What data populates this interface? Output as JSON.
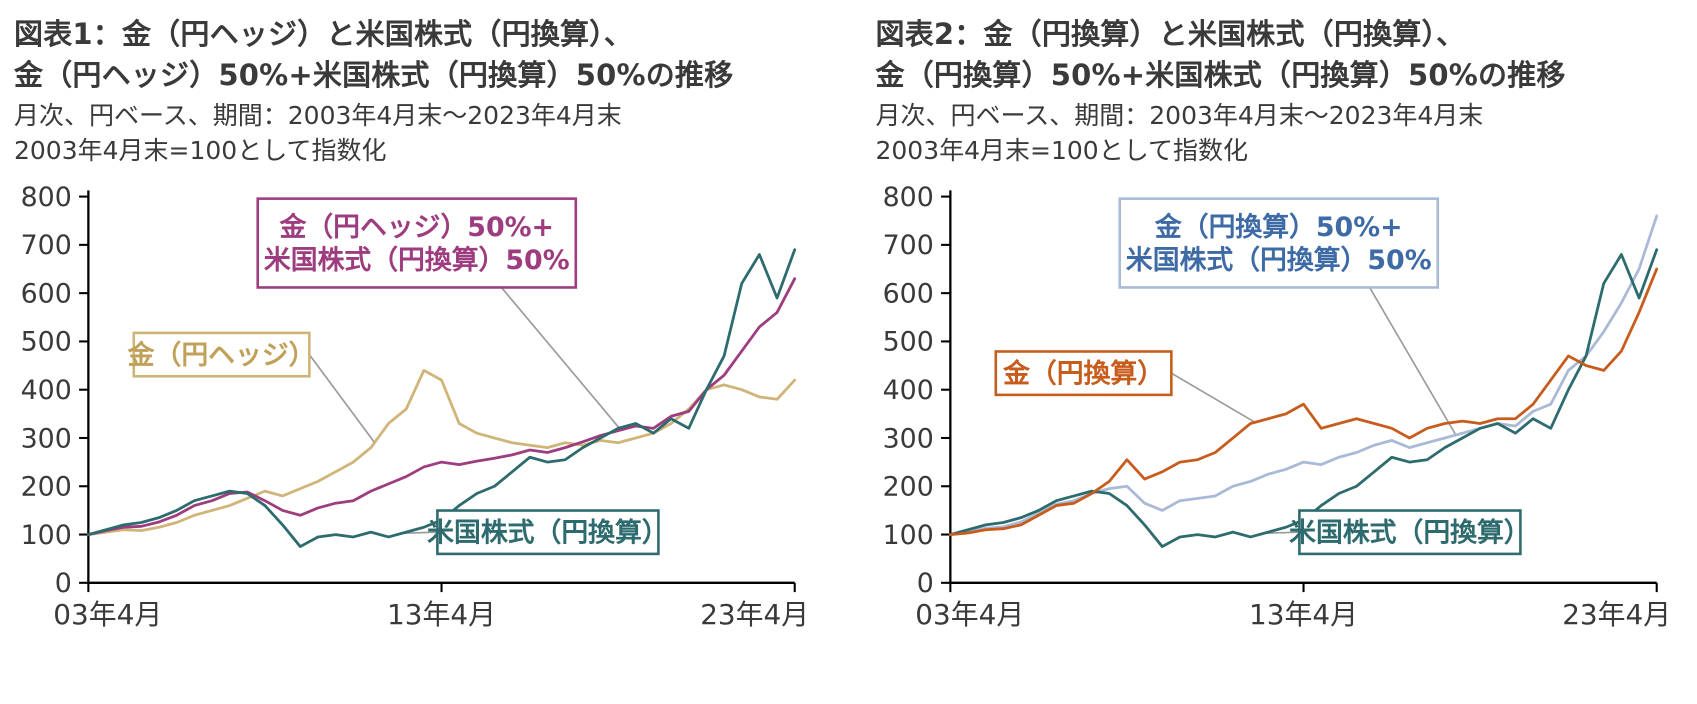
{
  "chart_data": [
    {
      "type": "line",
      "title_lines": [
        "図表1：金（円ヘッジ）と米国株式（円換算）、",
        "金（円ヘッジ）50%+米国株式（円換算）50%の推移"
      ],
      "subtitle_lines": [
        "月次、円ベース、期間：2003年4月末～2023年4月末",
        "2003年4月末=100として指数化"
      ],
      "x_range": [
        0,
        20
      ],
      "x_step": 0.5,
      "x_unit": "years since 2003-04 (monthly, indexed 2003-04 = 100)",
      "x_ticks": [
        0,
        10,
        20
      ],
      "x_tick_labels": [
        "03年4月",
        "13年4月",
        "23年4月"
      ],
      "ylim": [
        0,
        800
      ],
      "y_ticks": [
        0,
        100,
        200,
        300,
        400,
        500,
        600,
        700,
        800
      ],
      "grid": false,
      "series": [
        {
          "key": "gold-hedged",
          "name": "金（円ヘッジ）",
          "color": "#d0b479",
          "values": [
            100,
            105,
            110,
            108,
            115,
            125,
            140,
            150,
            160,
            175,
            190,
            180,
            195,
            210,
            230,
            250,
            280,
            330,
            360,
            440,
            420,
            330,
            310,
            300,
            290,
            285,
            280,
            290,
            285,
            295,
            290,
            300,
            310,
            330,
            360,
            400,
            410,
            400,
            385,
            380,
            420
          ]
        },
        {
          "key": "combo-50-50",
          "name": "金（円ヘッジ）50%+米国株式（円換算）50%",
          "color": "#9d3d7f",
          "values": [
            100,
            108,
            115,
            117,
            126,
            140,
            160,
            170,
            185,
            188,
            170,
            150,
            140,
            155,
            165,
            170,
            190,
            205,
            220,
            240,
            250,
            245,
            252,
            258,
            265,
            275,
            270,
            280,
            292,
            305,
            315,
            325,
            320,
            345,
            355,
            400,
            430,
            480,
            530,
            560,
            630
          ]
        },
        {
          "key": "us-equity",
          "name": "米国株式（円換算）",
          "color": "#2d6b6e",
          "values": [
            100,
            110,
            120,
            125,
            135,
            150,
            170,
            180,
            190,
            185,
            160,
            120,
            75,
            95,
            100,
            95,
            105,
            95,
            105,
            115,
            130,
            160,
            185,
            200,
            230,
            260,
            250,
            255,
            280,
            300,
            320,
            330,
            310,
            340,
            320,
            400,
            470,
            620,
            680,
            590,
            690
          ]
        }
      ],
      "legend": {
        "combo": {
          "lines": [
            "金（円ヘッジ）50%+",
            "米国株式（円換算）50%"
          ],
          "text_color": "#9d3d7f",
          "border_color": "#9d3d7f"
        },
        "gold": {
          "lines": [
            "金（円ヘッジ）"
          ],
          "text_color": "#c1a05a",
          "border_color": "#cfb478"
        },
        "equity": {
          "lines": [
            "米国株式（円換算）"
          ],
          "text_color": "#2d6b6e",
          "border_color": "#2d6b6e"
        }
      }
    },
    {
      "type": "line",
      "title_lines": [
        "図表2：金（円換算）と米国株式（円換算）、",
        "金（円換算）50%+米国株式（円換算）50%の推移"
      ],
      "subtitle_lines": [
        "月次、円ベース、期間：2003年4月末～2023年4月末",
        "2003年4月末=100として指数化"
      ],
      "x_range": [
        0,
        20
      ],
      "x_step": 0.5,
      "x_unit": "years since 2003-04 (monthly, indexed 2003-04 = 100)",
      "x_ticks": [
        0,
        10,
        20
      ],
      "x_tick_labels": [
        "03年4月",
        "13年4月",
        "23年4月"
      ],
      "ylim": [
        0,
        800
      ],
      "y_ticks": [
        0,
        100,
        200,
        300,
        400,
        500,
        600,
        700,
        800
      ],
      "grid": false,
      "series": [
        {
          "key": "combo-50-50",
          "name": "金（円換算）50%+米国株式（円換算）50%",
          "color": "#a9bad6",
          "values": [
            100,
            106,
            113,
            116,
            126,
            144,
            163,
            170,
            185,
            195,
            200,
            165,
            150,
            170,
            175,
            180,
            200,
            210,
            225,
            235,
            250,
            245,
            260,
            270,
            285,
            295,
            280,
            290,
            300,
            310,
            320,
            330,
            325,
            355,
            370,
            440,
            470,
            520,
            580,
            650,
            760
          ]
        },
        {
          "key": "us-equity",
          "name": "米国株式（円換算）",
          "color": "#2d6b6e",
          "values": [
            100,
            110,
            120,
            125,
            135,
            150,
            170,
            180,
            190,
            185,
            160,
            120,
            75,
            95,
            100,
            95,
            105,
            95,
            105,
            115,
            130,
            160,
            185,
            200,
            230,
            260,
            250,
            255,
            280,
            300,
            320,
            330,
            310,
            340,
            320,
            400,
            470,
            620,
            680,
            590,
            690
          ]
        },
        {
          "key": "gold-yen",
          "name": "金（円換算）",
          "color": "#c75c1d",
          "values": [
            100,
            103,
            110,
            112,
            120,
            140,
            160,
            165,
            185,
            210,
            255,
            215,
            230,
            250,
            255,
            270,
            300,
            330,
            340,
            350,
            370,
            320,
            330,
            340,
            330,
            320,
            300,
            320,
            330,
            335,
            330,
            340,
            340,
            370,
            420,
            470,
            450,
            440,
            480,
            560,
            650
          ]
        }
      ],
      "legend": {
        "combo": {
          "lines": [
            "金（円換算）50%+",
            "米国株式（円換算）50%"
          ],
          "text_color": "#3e6ba6",
          "border_color": "#a9bad6"
        },
        "gold": {
          "lines": [
            "金（円換算）"
          ],
          "text_color": "#c75c1d",
          "border_color": "#c75c1d"
        },
        "equity": {
          "lines": [
            "米国株式（円換算）"
          ],
          "text_color": "#2d6b6e",
          "border_color": "#2d6b6e"
        }
      }
    }
  ]
}
